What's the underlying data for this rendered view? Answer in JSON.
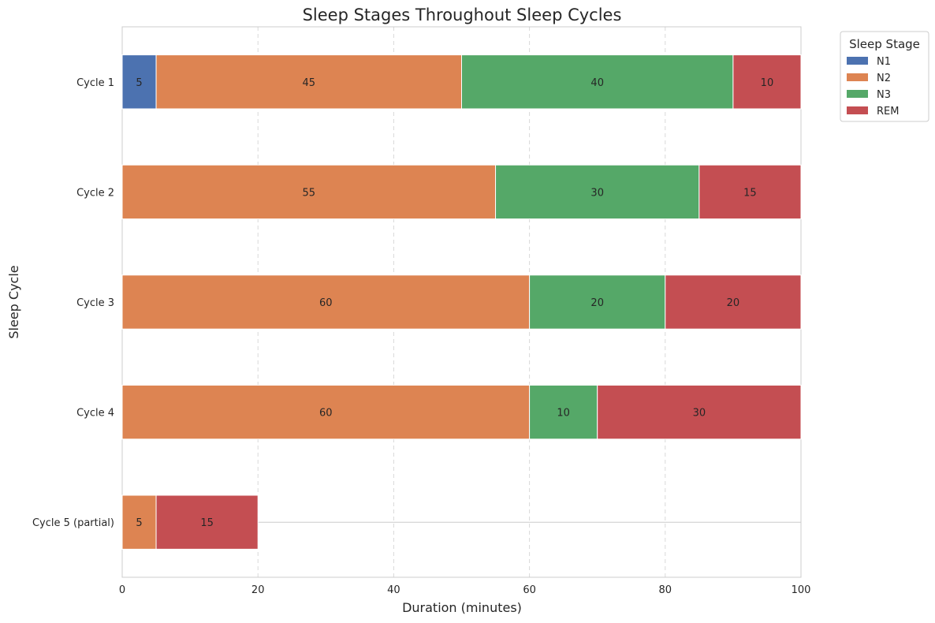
{
  "chart_data": {
    "type": "bar",
    "orientation": "horizontal",
    "stacked": true,
    "title": "Sleep Stages Throughout Sleep Cycles",
    "xlabel": "Duration (minutes)",
    "ylabel": "Sleep Cycle",
    "xlim": [
      0,
      100
    ],
    "xticks": [
      "0",
      "20",
      "40",
      "60",
      "80",
      "100"
    ],
    "grid": "x-axis dashed",
    "categories": [
      "Cycle 1",
      "Cycle 2",
      "Cycle 3",
      "Cycle 4",
      "Cycle 5 (partial)"
    ],
    "series": [
      {
        "name": "N1",
        "color": "#4c72b0",
        "values": [
          5,
          0,
          0,
          0,
          0
        ]
      },
      {
        "name": "N2",
        "color": "#dd8452",
        "values": [
          45,
          55,
          60,
          60,
          5
        ]
      },
      {
        "name": "N3",
        "color": "#55a868",
        "values": [
          40,
          30,
          20,
          10,
          0
        ]
      },
      {
        "name": "REM",
        "color": "#c44e52",
        "values": [
          10,
          15,
          20,
          30,
          15
        ]
      }
    ],
    "legend": {
      "title": "Sleep Stage",
      "placement": "outside top-right"
    }
  }
}
